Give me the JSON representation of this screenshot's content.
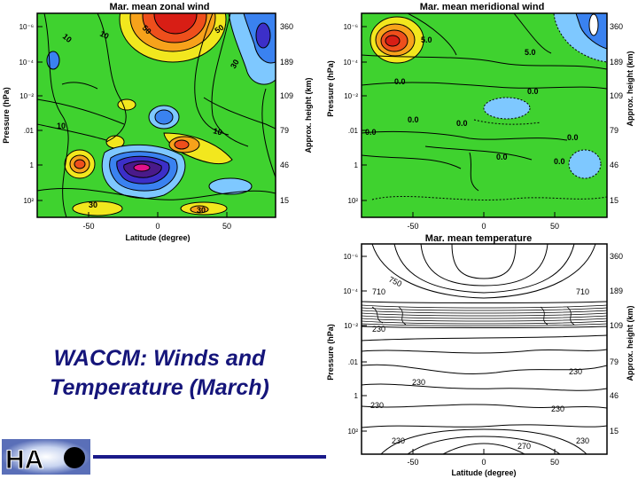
{
  "slide": {
    "caption_line1": "WACCM: Winds and",
    "caption_line2": "Temperature (March)",
    "logo_text": "HA"
  },
  "chart_data": [
    {
      "type": "heatmap",
      "title": "Mar. mean zonal wind",
      "xlabel": "Latitude (degree)",
      "ylabel_left": "Pressure (hPa)",
      "ylabel_right": "Approx. height (km)",
      "x_ticks": [
        "-50",
        "0",
        "50"
      ],
      "y_ticks_left": [
        "10⁻⁶",
        "10⁻⁴",
        "10⁻²",
        ".01",
        "1",
        "10²"
      ],
      "y_ticks_right": [
        "360",
        "189",
        "109",
        "79",
        "46",
        "15"
      ],
      "contour_labels": [
        "10",
        "50",
        "10",
        "30",
        "50",
        "10",
        "10",
        "30",
        "30"
      ]
    },
    {
      "type": "heatmap",
      "title": "Mar. mean meridional wind",
      "xlabel": "",
      "ylabel_left": "Pressure (hPa)",
      "ylabel_right": "Approx. height (km)",
      "x_ticks": [
        "-50",
        "0",
        "50"
      ],
      "y_ticks_left": [
        "10⁻⁶",
        "10⁻⁴",
        "10⁻²",
        ".01",
        "1",
        "10²"
      ],
      "y_ticks_right": [
        "360",
        "189",
        "109",
        "79",
        "46",
        "15"
      ],
      "contour_labels": [
        "5.0",
        "5.0",
        "0.0",
        "0.0",
        "0.0",
        "0.0",
        "0.0",
        "0.0",
        "0.0",
        "0.0"
      ]
    },
    {
      "type": "heatmap",
      "title": "Mar. mean temperature",
      "xlabel": "Latitude (degree)",
      "ylabel_left": "Pressure (hPa)",
      "ylabel_right": "Approx. height (km)",
      "x_ticks": [
        "-50",
        "0",
        "50"
      ],
      "y_ticks_left": [
        "10⁻⁶",
        "10⁻⁴",
        "10⁻²",
        ".01",
        "1",
        "10²"
      ],
      "y_ticks_right": [
        "360",
        "189",
        "109",
        "79",
        "46",
        "15"
      ],
      "contour_labels": [
        "750",
        "710",
        "710",
        "230",
        "230",
        "230",
        "230",
        "230",
        "230",
        "230",
        "270"
      ]
    }
  ]
}
